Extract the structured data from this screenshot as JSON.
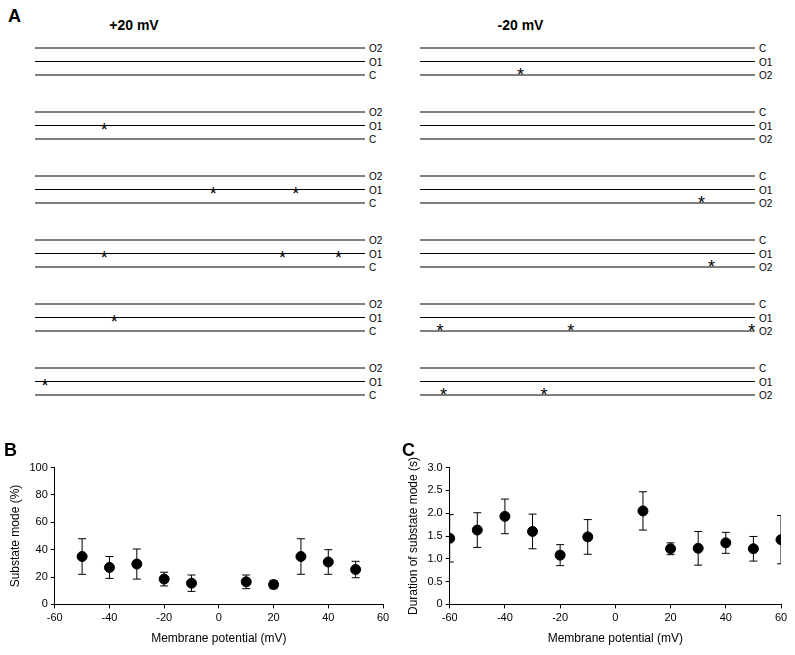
{
  "panel_a": {
    "label": "A",
    "asterisk": "*",
    "columns": [
      {
        "title": "+20 mV",
        "levels": [
          "O2",
          "O1",
          "C"
        ],
        "rows": [
          [],
          [
            0.21
          ],
          [
            0.54,
            0.79
          ],
          [
            0.21,
            0.75,
            0.92
          ],
          [
            0.24
          ],
          [
            0.03
          ]
        ]
      },
      {
        "title": "-20 mV",
        "levels": [
          "C",
          "O1",
          "O2"
        ],
        "rows": [
          [
            0.3
          ],
          [],
          [
            0.84
          ],
          [
            0.87
          ],
          [
            0.06,
            0.45,
            0.99
          ],
          [
            0.07,
            0.37
          ]
        ]
      }
    ]
  },
  "chart_data": [
    {
      "type": "scatter",
      "title": "B",
      "x_label": "Membrane potential (mV)",
      "y_label": "Substate mode (%)",
      "x": [
        -50,
        -40,
        -30,
        -20,
        -10,
        10,
        20,
        30,
        40,
        50
      ],
      "values": [
        35,
        27,
        29.5,
        18.5,
        15.5,
        16.5,
        14.5,
        35,
        31,
        25.5
      ],
      "errors": [
        13,
        8,
        11,
        5,
        6,
        5,
        3,
        13,
        9,
        6
      ],
      "color": "#000000",
      "marker": "circle",
      "xlim": [
        -60,
        60
      ],
      "xticks": [
        -60,
        -40,
        -20,
        0,
        20,
        40,
        60
      ],
      "ylim": [
        0,
        100
      ],
      "yticks": [
        0,
        20,
        40,
        60,
        80,
        100
      ],
      "grid": false
    },
    {
      "type": "scatter",
      "title": "C",
      "x_label": "Membrane potential (mV)",
      "y_label": "Duration of substate mode (s)",
      "x": [
        -60,
        -50,
        -40,
        -30,
        -20,
        -10,
        10,
        20,
        30,
        40,
        50,
        60
      ],
      "values": [
        1.45,
        1.63,
        1.93,
        1.6,
        1.08,
        1.48,
        2.05,
        1.22,
        1.23,
        1.35,
        1.22,
        1.42
      ],
      "errors": [
        0.52,
        0.38,
        0.38,
        0.38,
        0.23,
        0.38,
        0.42,
        0.13,
        0.37,
        0.23,
        0.27,
        0.53
      ],
      "color": "#000000",
      "marker": "circle",
      "xlim": [
        -60,
        60
      ],
      "xticks": [
        -60,
        -40,
        -20,
        0,
        20,
        40,
        60
      ],
      "ylim": [
        0,
        3
      ],
      "yticks": [
        0,
        0.5,
        {
          "value": 1,
          "label": "1.0"
        },
        1.5,
        {
          "value": 2,
          "label": "2.0"
        },
        2.5,
        {
          "value": 3,
          "label": "3.0"
        }
      ],
      "grid": false
    }
  ]
}
